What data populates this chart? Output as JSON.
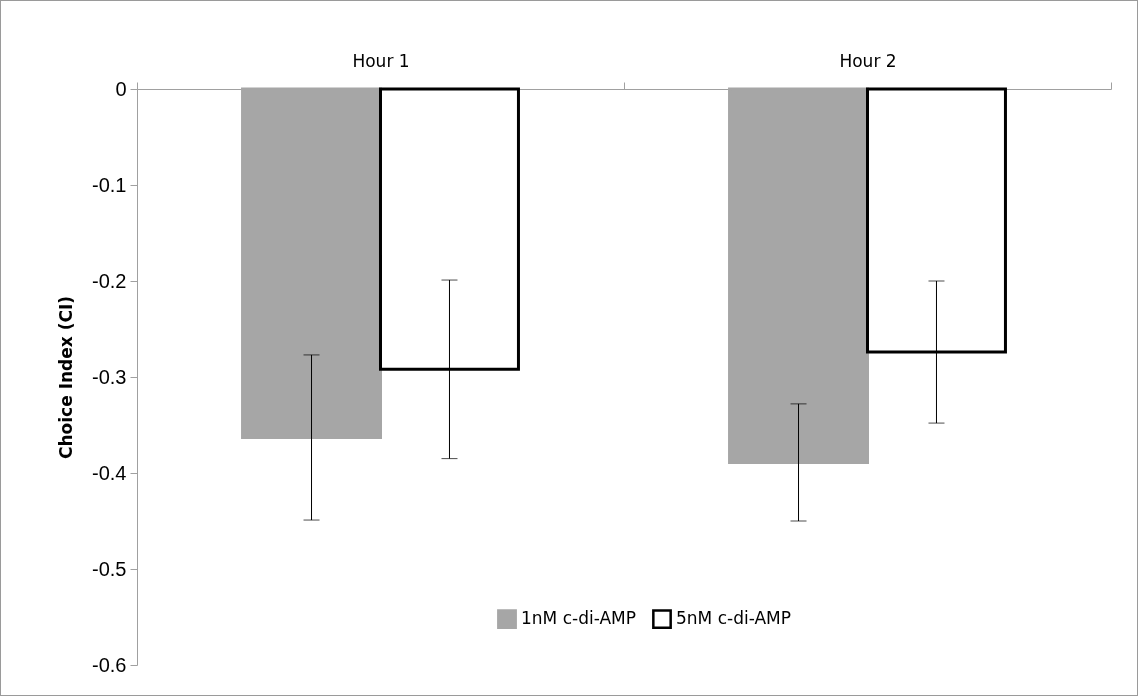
{
  "chart_data": {
    "type": "bar",
    "ylabel": "Choice Index (CI)",
    "categories": [
      "Hour 1",
      "Hour 2"
    ],
    "series": [
      {
        "name": "1nM c-di-AMP",
        "color": "#a6a6a6",
        "values": [
          -0.363,
          -0.389
        ],
        "errors": [
          0.086,
          0.061
        ]
      },
      {
        "name": "5nM c-di-AMP",
        "color": "#ffffff",
        "values": [
          -0.292,
          -0.274
        ],
        "errors": [
          0.093,
          0.074
        ]
      }
    ],
    "ylim": [
      -0.6,
      0
    ],
    "yticks": [
      -0.6,
      -0.5,
      -0.4,
      -0.3,
      -0.2,
      -0.1,
      0
    ],
    "grid": false,
    "legend": "bottom"
  }
}
